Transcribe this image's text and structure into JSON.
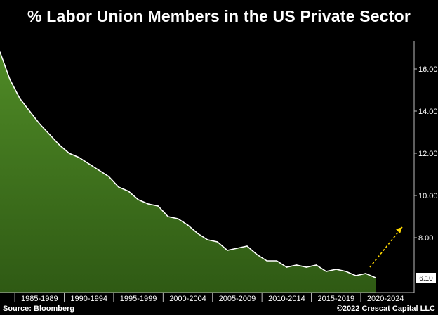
{
  "chart_data": {
    "type": "area",
    "title": "% Labor Union Members in the US Private Sector",
    "x": [
      1983,
      1984,
      1985,
      1986,
      1987,
      1988,
      1989,
      1990,
      1991,
      1992,
      1993,
      1994,
      1995,
      1996,
      1997,
      1998,
      1999,
      2000,
      2001,
      2002,
      2003,
      2004,
      2005,
      2006,
      2007,
      2008,
      2009,
      2010,
      2011,
      2012,
      2013,
      2014,
      2015,
      2016,
      2017,
      2018,
      2019,
      2020,
      2021
    ],
    "values": [
      16.8,
      15.5,
      14.6,
      14.0,
      13.4,
      12.9,
      12.4,
      12.0,
      11.8,
      11.5,
      11.2,
      10.9,
      10.4,
      10.2,
      9.8,
      9.6,
      9.5,
      9.0,
      8.9,
      8.6,
      8.2,
      7.9,
      7.8,
      7.4,
      7.5,
      7.6,
      7.2,
      6.9,
      6.9,
      6.6,
      6.7,
      6.6,
      6.7,
      6.4,
      6.5,
      6.4,
      6.2,
      6.3,
      6.1
    ],
    "x_categories": [
      "1985-1989",
      "1990-1994",
      "1995-1999",
      "2000-2004",
      "2005-2009",
      "2010-2014",
      "2015-2019",
      "2020-2024"
    ],
    "y_ticks": [
      "16.00",
      "14.00",
      "12.00",
      "10.00",
      "8.00"
    ],
    "ylim": [
      5.4,
      17.2
    ],
    "last_value_label": "6.10",
    "fill_color": "#2f5a14",
    "fill_color_light": "#4f8a26",
    "line_color": "#ffffff",
    "annotation_arrow_color": "#ffd800",
    "grid": false
  },
  "footer": {
    "source": "Source: Bloomberg",
    "copyright": "©2022 Crescat Capital LLC"
  }
}
